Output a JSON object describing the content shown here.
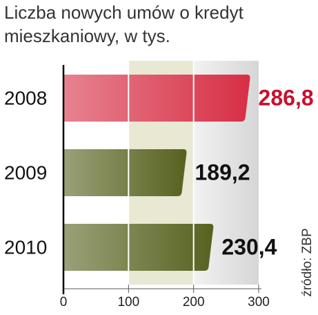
{
  "chart_data": {
    "type": "barh",
    "title": [
      "Liczba nowych umów o kredyt",
      "mieszkaniowy, w tys."
    ],
    "categories": [
      "2008",
      "2009",
      "2010"
    ],
    "values": [
      286.8,
      189.2,
      230.4
    ],
    "value_labels": [
      "286,8",
      "189,2",
      "230,4"
    ],
    "colors": [
      "#d72f45",
      "#57621f",
      "#57621f"
    ],
    "value_label_colors": [
      "#c8102e",
      "#111111",
      "#111111"
    ],
    "xlim": [
      0,
      300
    ],
    "xticks": [
      0,
      100,
      200,
      300
    ],
    "grid": true,
    "source": "źródło: ZBP"
  }
}
